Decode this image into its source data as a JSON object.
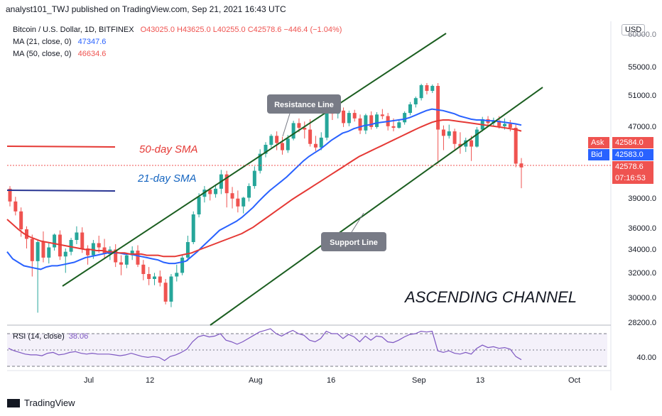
{
  "header": {
    "publisher_line": "analyst101_TWJ published on TradingView.com, Sep 21, 2021 16:43 UTC"
  },
  "legend": {
    "symbol": "Bitcoin / U.S. Dollar, 1D, BITFINEX",
    "ohlc": "O43025.0  H43625.0  L40255.0  C42578.6  −446.4 (−1.04%)",
    "ma21_label": "MA (21, close, 0)",
    "ma21_value": "47347.6",
    "ma50_label": "MA (50, close, 0)",
    "ma50_value": "46634.6",
    "rsi_label": "RSI (14, close)",
    "rsi_value": "38.06"
  },
  "price_axis": {
    "currency": "USD",
    "labels": [
      "55000.0",
      "51000.0",
      "47000.0",
      "39000.0",
      "36000.0",
      "34000.0",
      "32000.0",
      "30000.0",
      "28200.0"
    ],
    "top_label": "60000.0",
    "rsi_labels": [
      "40.00"
    ]
  },
  "tags": {
    "ask_label": "Ask",
    "ask_value": "42584.0",
    "bid_label": "Bid",
    "bid_value": "42583.0",
    "last_value": "42578.6",
    "countdown": "07:16:53"
  },
  "annotations": {
    "sma50": "50-day SMA",
    "sma21": "21-day SMA",
    "resistance": "Resistance Line",
    "support": "Support Line",
    "pattern": "ASCENDING CHANNEL"
  },
  "x_axis": {
    "ticks": [
      "Jul",
      "12",
      "Aug",
      "16",
      "Sep",
      "13",
      "Oct"
    ]
  },
  "brand": {
    "name": "TradingView"
  },
  "colors": {
    "up": "#26a69a",
    "down": "#ef5350",
    "ma21": "#2962ff",
    "ma50": "#e53935",
    "channel": "#1b5e20",
    "rsi": "#7e57c2"
  },
  "chart_data": {
    "type": "candlestick",
    "title": "Bitcoin / U.S. Dollar, 1D, BITFINEX",
    "ylim": [
      28200,
      60000
    ],
    "candles": [
      {
        "o": 40200,
        "h": 40500,
        "c": 38800,
        "l": 38300
      },
      {
        "o": 38800,
        "h": 39300,
        "c": 37800,
        "l": 37400
      },
      {
        "o": 37800,
        "h": 38200,
        "c": 36000,
        "l": 35300
      },
      {
        "o": 36000,
        "h": 36300,
        "c": 35100,
        "l": 34200
      },
      {
        "o": 35100,
        "h": 35500,
        "c": 33100,
        "l": 31800
      },
      {
        "o": 33100,
        "h": 35000,
        "c": 34800,
        "l": 29000
      },
      {
        "o": 34800,
        "h": 35800,
        "c": 33400,
        "l": 33000
      },
      {
        "o": 33400,
        "h": 34800,
        "c": 34300,
        "l": 32900
      },
      {
        "o": 34300,
        "h": 35600,
        "c": 35500,
        "l": 34000
      },
      {
        "o": 35500,
        "h": 35900,
        "c": 33500,
        "l": 33200
      },
      {
        "o": 33500,
        "h": 34200,
        "c": 33900,
        "l": 32100
      },
      {
        "o": 33900,
        "h": 35200,
        "c": 35000,
        "l": 33600
      },
      {
        "o": 35000,
        "h": 36300,
        "c": 35700,
        "l": 34600
      },
      {
        "o": 35700,
        "h": 36200,
        "c": 34200,
        "l": 33800
      },
      {
        "o": 34200,
        "h": 34500,
        "c": 33600,
        "l": 32800
      },
      {
        "o": 33600,
        "h": 35000,
        "c": 34700,
        "l": 33300
      },
      {
        "o": 34700,
        "h": 35400,
        "c": 34300,
        "l": 33800
      },
      {
        "o": 34300,
        "h": 35100,
        "c": 33700,
        "l": 33400
      },
      {
        "o": 33700,
        "h": 34400,
        "c": 34100,
        "l": 33200
      },
      {
        "o": 34100,
        "h": 34600,
        "c": 33000,
        "l": 32600
      },
      {
        "o": 33000,
        "h": 33600,
        "c": 32800,
        "l": 31900
      },
      {
        "o": 32800,
        "h": 33800,
        "c": 33600,
        "l": 32500
      },
      {
        "o": 33600,
        "h": 34400,
        "c": 34000,
        "l": 33200
      },
      {
        "o": 34000,
        "h": 34500,
        "c": 32800,
        "l": 32600
      },
      {
        "o": 32800,
        "h": 33200,
        "c": 32000,
        "l": 31500
      },
      {
        "o": 32000,
        "h": 32600,
        "c": 31600,
        "l": 31100
      },
      {
        "o": 31600,
        "h": 32100,
        "c": 31800,
        "l": 31100
      },
      {
        "o": 31800,
        "h": 32300,
        "c": 31300,
        "l": 31000
      },
      {
        "o": 31300,
        "h": 31600,
        "c": 29800,
        "l": 29600
      },
      {
        "o": 29800,
        "h": 32000,
        "c": 31800,
        "l": 29400
      },
      {
        "o": 31800,
        "h": 32800,
        "c": 32100,
        "l": 31400
      },
      {
        "o": 32100,
        "h": 33600,
        "c": 33400,
        "l": 31900
      },
      {
        "o": 33400,
        "h": 35400,
        "c": 34800,
        "l": 33100
      },
      {
        "o": 34800,
        "h": 37800,
        "c": 37500,
        "l": 34600
      },
      {
        "o": 37500,
        "h": 39700,
        "c": 39300,
        "l": 37200
      },
      {
        "o": 39300,
        "h": 40500,
        "c": 40100,
        "l": 38700
      },
      {
        "o": 40100,
        "h": 40300,
        "c": 39600,
        "l": 38900
      },
      {
        "o": 39600,
        "h": 40700,
        "c": 40200,
        "l": 39200
      },
      {
        "o": 40200,
        "h": 42300,
        "c": 41800,
        "l": 39600
      },
      {
        "o": 41800,
        "h": 42200,
        "c": 39700,
        "l": 38200
      },
      {
        "o": 39700,
        "h": 40400,
        "c": 39100,
        "l": 38100
      },
      {
        "o": 39100,
        "h": 40000,
        "c": 38300,
        "l": 37700
      },
      {
        "o": 38300,
        "h": 39300,
        "c": 39200,
        "l": 37600
      },
      {
        "o": 39200,
        "h": 40800,
        "c": 40500,
        "l": 38800
      },
      {
        "o": 40500,
        "h": 42700,
        "c": 42200,
        "l": 40200
      },
      {
        "o": 42200,
        "h": 44600,
        "c": 44100,
        "l": 41900
      },
      {
        "o": 44100,
        "h": 45400,
        "c": 45100,
        "l": 43700
      },
      {
        "o": 45100,
        "h": 46300,
        "c": 46100,
        "l": 44800
      },
      {
        "o": 46100,
        "h": 46600,
        "c": 45300,
        "l": 44500
      },
      {
        "o": 45300,
        "h": 46000,
        "c": 44500,
        "l": 44000
      },
      {
        "o": 44500,
        "h": 46200,
        "c": 45800,
        "l": 44200
      },
      {
        "o": 45800,
        "h": 47900,
        "c": 47600,
        "l": 45600
      },
      {
        "o": 47600,
        "h": 48200,
        "c": 47000,
        "l": 46500
      },
      {
        "o": 47000,
        "h": 47800,
        "c": 46800,
        "l": 45800
      },
      {
        "o": 46800,
        "h": 48100,
        "c": 45200,
        "l": 44900
      },
      {
        "o": 45200,
        "h": 46100,
        "c": 44800,
        "l": 44400
      },
      {
        "o": 44800,
        "h": 46500,
        "c": 45900,
        "l": 44500
      },
      {
        "o": 45900,
        "h": 49300,
        "c": 49100,
        "l": 45600
      },
      {
        "o": 49100,
        "h": 49600,
        "c": 48800,
        "l": 48000
      },
      {
        "o": 48800,
        "h": 49800,
        "c": 49200,
        "l": 48200
      },
      {
        "o": 49200,
        "h": 49600,
        "c": 47600,
        "l": 47100
      },
      {
        "o": 47600,
        "h": 49200,
        "c": 48900,
        "l": 47200
      },
      {
        "o": 48900,
        "h": 49300,
        "c": 48200,
        "l": 47800
      },
      {
        "o": 48200,
        "h": 48700,
        "c": 46700,
        "l": 46300
      },
      {
        "o": 46700,
        "h": 48800,
        "c": 48600,
        "l": 46300
      },
      {
        "o": 48600,
        "h": 49100,
        "c": 47100,
        "l": 46800
      },
      {
        "o": 47100,
        "h": 49000,
        "c": 48700,
        "l": 46900
      },
      {
        "o": 48700,
        "h": 49400,
        "c": 48500,
        "l": 48100
      },
      {
        "o": 48500,
        "h": 48900,
        "c": 47200,
        "l": 46700
      },
      {
        "o": 47200,
        "h": 48200,
        "c": 47000,
        "l": 46600
      },
      {
        "o": 47000,
        "h": 48100,
        "c": 47700,
        "l": 46900
      },
      {
        "o": 47700,
        "h": 49100,
        "c": 48900,
        "l": 47400
      },
      {
        "o": 48900,
        "h": 50300,
        "c": 50000,
        "l": 48600
      },
      {
        "o": 50000,
        "h": 51000,
        "c": 50800,
        "l": 49600
      },
      {
        "o": 50800,
        "h": 52800,
        "c": 52600,
        "l": 50500
      },
      {
        "o": 52600,
        "h": 52900,
        "c": 51800,
        "l": 51300
      },
      {
        "o": 51800,
        "h": 52700,
        "c": 52500,
        "l": 51500
      },
      {
        "o": 52500,
        "h": 52900,
        "c": 46800,
        "l": 43000
      },
      {
        "o": 46800,
        "h": 47300,
        "c": 46100,
        "l": 44500
      },
      {
        "o": 46100,
        "h": 47400,
        "c": 46600,
        "l": 45800
      },
      {
        "o": 46600,
        "h": 46900,
        "c": 45200,
        "l": 44600
      },
      {
        "o": 45200,
        "h": 46500,
        "c": 44900,
        "l": 44100
      },
      {
        "o": 44900,
        "h": 45900,
        "c": 45600,
        "l": 44300
      },
      {
        "o": 45600,
        "h": 46100,
        "c": 44900,
        "l": 43300
      },
      {
        "o": 44900,
        "h": 47100,
        "c": 46800,
        "l": 44800
      },
      {
        "o": 46800,
        "h": 48400,
        "c": 48100,
        "l": 46600
      },
      {
        "o": 48100,
        "h": 48500,
        "c": 47600,
        "l": 47100
      },
      {
        "o": 47600,
        "h": 48300,
        "c": 47900,
        "l": 47200
      },
      {
        "o": 47900,
        "h": 48500,
        "c": 47200,
        "l": 46900
      },
      {
        "o": 47200,
        "h": 48200,
        "c": 47500,
        "l": 46800
      },
      {
        "o": 47500,
        "h": 48000,
        "c": 47000,
        "l": 46600
      },
      {
        "o": 47000,
        "h": 47400,
        "c": 43000,
        "l": 42600
      },
      {
        "o": 43025,
        "h": 43625,
        "c": 42578.6,
        "l": 40255
      }
    ],
    "ma21": [
      33900,
      33300,
      33000,
      32700,
      32600,
      32500,
      32400,
      32600,
      32700,
      32700,
      32800,
      32900,
      33000,
      33200,
      33400,
      33500,
      33600,
      33700,
      33800,
      33800,
      33800,
      33700,
      33700,
      33600,
      33500,
      33400,
      33300,
      33200,
      33000,
      32900,
      32900,
      33000,
      33100,
      33500,
      33900,
      34400,
      34900,
      35400,
      35900,
      36200,
      36500,
      36800,
      37200,
      37700,
      38200,
      38800,
      39400,
      40000,
      40500,
      41000,
      41500,
      42100,
      42700,
      43300,
      43800,
      44200,
      44600,
      45100,
      45600,
      46000,
      46400,
      46600,
      46900,
      47100,
      47300,
      47400,
      47600,
      47700,
      47800,
      47900,
      48000,
      48100,
      48300,
      48600,
      48900,
      49200,
      49400,
      49300,
      49200,
      49000,
      48800,
      48500,
      48300,
      48100,
      48000,
      48000,
      47900,
      47900,
      47800,
      47700,
      47600,
      47500,
      47350
    ],
    "ma50": [
      37000,
      36500,
      36000,
      35600,
      35300,
      35100,
      34900,
      34800,
      34700,
      34600,
      34500,
      34400,
      34300,
      34200,
      34100,
      34100,
      34000,
      34000,
      33900,
      33900,
      33800,
      33800,
      33700,
      33700,
      33700,
      33600,
      33600,
      33600,
      33500,
      33500,
      33500,
      33600,
      33700,
      33800,
      34000,
      34200,
      34400,
      34600,
      34800,
      35000,
      35200,
      35400,
      35600,
      35900,
      36200,
      36600,
      37000,
      37400,
      37800,
      38200,
      38600,
      39000,
      39400,
      39800,
      40200,
      40600,
      41000,
      41400,
      41800,
      42200,
      42600,
      43000,
      43400,
      43800,
      44100,
      44400,
      44700,
      45000,
      45300,
      45600,
      45900,
      46200,
      46500,
      46800,
      47100,
      47400,
      47700,
      47900,
      48000,
      48000,
      47900,
      47800,
      47700,
      47600,
      47500,
      47400,
      47300,
      47200,
      47100,
      47000,
      46900,
      46800,
      46634.6
    ],
    "rsi": [
      52,
      49,
      47,
      45,
      44,
      44,
      43,
      46,
      47,
      44,
      45,
      47,
      48,
      46,
      45,
      46,
      45,
      45,
      45,
      44,
      43,
      44,
      46,
      44,
      42,
      41,
      42,
      41,
      37,
      42,
      44,
      47,
      51,
      60,
      66,
      68,
      66,
      67,
      70,
      62,
      60,
      57,
      60,
      64,
      68,
      72,
      74,
      76,
      70,
      67,
      71,
      74,
      70,
      68,
      62,
      60,
      64,
      73,
      70,
      70,
      64,
      69,
      66,
      60,
      67,
      62,
      67,
      66,
      60,
      59,
      62,
      66,
      69,
      70,
      73,
      72,
      73,
      49,
      47,
      49,
      46,
      45,
      47,
      45,
      52,
      56,
      53,
      54,
      52,
      53,
      51,
      42,
      38.06
    ],
    "series": [
      {
        "name": "MA (21, close, 0)",
        "color": "#2962ff"
      },
      {
        "name": "MA (50, close, 0)",
        "color": "#e53935"
      }
    ]
  }
}
